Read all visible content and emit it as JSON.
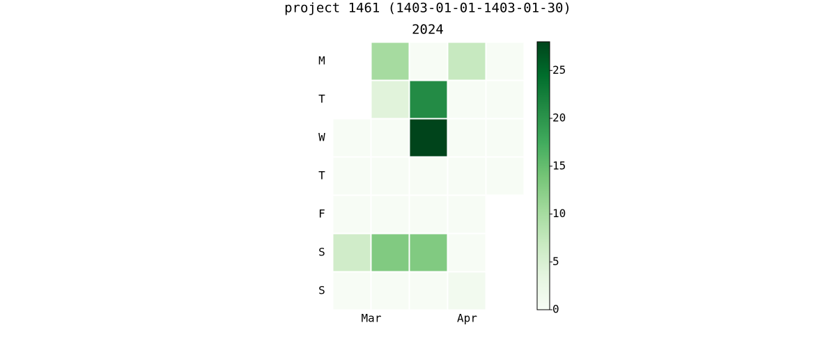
{
  "chart_data": {
    "type": "calendar-heatmap",
    "title": "project 1461 (1403-01-01-1403-01-30)",
    "subtitle": "2024",
    "rows": [
      "M",
      "T",
      "W",
      "T",
      "F",
      "S",
      "S"
    ],
    "values": [
      [
        null,
        10,
        0,
        7,
        0
      ],
      [
        null,
        4,
        21,
        0,
        0
      ],
      [
        0,
        0,
        28,
        0,
        0
      ],
      [
        0,
        0,
        0,
        0,
        0
      ],
      [
        0,
        0,
        0,
        0,
        null
      ],
      [
        6,
        13,
        13,
        0,
        null
      ],
      [
        0,
        0,
        0,
        1,
        null
      ]
    ],
    "xlim": [
      0,
      5
    ],
    "xticks": [
      {
        "value": 1,
        "label": "Mar"
      },
      {
        "value": 3.5,
        "label": "Apr"
      }
    ],
    "colormap": "Greens",
    "clim": [
      0,
      28
    ],
    "cticks": [
      0,
      5,
      10,
      15,
      20,
      25
    ]
  }
}
